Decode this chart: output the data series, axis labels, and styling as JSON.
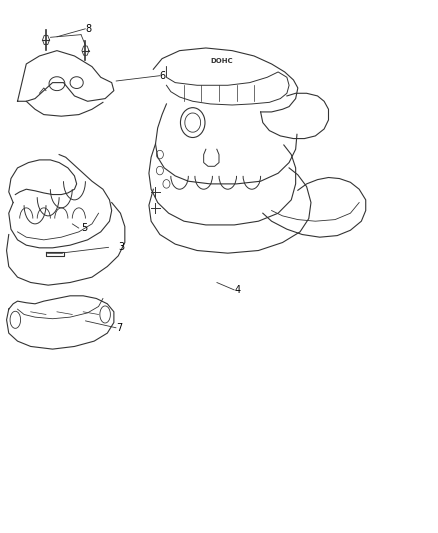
{
  "background_color": "#ffffff",
  "line_color": "#333333",
  "text_color": "#000000",
  "fig_width": 4.38,
  "fig_height": 5.33,
  "dpi": 100
}
